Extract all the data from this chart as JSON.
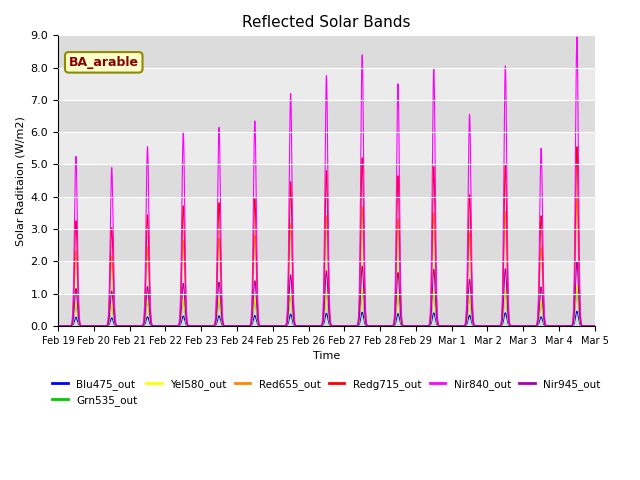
{
  "title": "Reflected Solar Bands",
  "xlabel": "Time",
  "ylabel": "Solar Raditaion (W/m2)",
  "ylim": [
    0,
    9.0
  ],
  "yticks": [
    0.0,
    1.0,
    2.0,
    3.0,
    4.0,
    5.0,
    6.0,
    7.0,
    8.0,
    9.0
  ],
  "annotation_text": "BA_arable",
  "series_names": [
    "Blu475_out",
    "Grn535_out",
    "Yel580_out",
    "Red655_out",
    "Redg715_out",
    "Nir840_out",
    "Nir945_out"
  ],
  "series_colors": [
    "#0000ff",
    "#00cc00",
    "#ffff00",
    "#ff8800",
    "#ff0000",
    "#ff00ff",
    "#aa00aa"
  ],
  "series_scales": [
    0.05,
    0.13,
    0.14,
    0.44,
    0.62,
    1.0,
    0.22
  ],
  "xtick_labels": [
    "Feb 19",
    "Feb 20",
    "Feb 21",
    "Feb 22",
    "Feb 23",
    "Feb 24",
    "Feb 25",
    "Feb 26",
    "Feb 27",
    "Feb 28",
    "Feb 29",
    "Mar 1",
    "Mar 2",
    "Mar 3",
    "Mar 4",
    "Mar 5"
  ],
  "background_color": "#e8e8e8",
  "plot_bg_light": "#f0f0f0",
  "plot_bg_dark": "#dcdcdc",
  "nir840_peaks": [
    5.25,
    4.9,
    5.55,
    6.0,
    6.15,
    6.35,
    7.2,
    7.75,
    8.4,
    7.5,
    7.95,
    6.55,
    8.05,
    5.5,
    8.95
  ],
  "sigma": 0.04,
  "figsize": [
    6.4,
    4.8
  ],
  "dpi": 100
}
